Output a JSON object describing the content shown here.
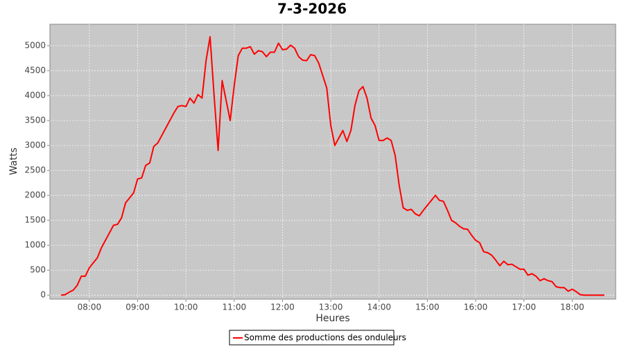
{
  "chart_data": {
    "type": "line",
    "title": "7-3-2026",
    "x_label": "Heures",
    "y_label": "Watts",
    "x": [
      "07:25",
      "07:30",
      "07:35",
      "07:40",
      "07:45",
      "07:50",
      "07:55",
      "08:00",
      "08:05",
      "08:10",
      "08:15",
      "08:20",
      "08:25",
      "08:30",
      "08:35",
      "08:40",
      "08:45",
      "08:50",
      "08:55",
      "09:00",
      "09:05",
      "09:10",
      "09:15",
      "09:20",
      "09:25",
      "09:30",
      "09:35",
      "09:40",
      "09:45",
      "09:50",
      "09:55",
      "10:00",
      "10:05",
      "10:10",
      "10:15",
      "10:20",
      "10:25",
      "10:30",
      "10:35",
      "10:40",
      "10:45",
      "10:50",
      "10:55",
      "11:00",
      "11:05",
      "11:10",
      "11:15",
      "11:20",
      "11:25",
      "11:30",
      "11:35",
      "11:40",
      "11:45",
      "11:50",
      "11:55",
      "12:00",
      "12:05",
      "12:10",
      "12:15",
      "12:20",
      "12:25",
      "12:30",
      "12:35",
      "12:40",
      "12:45",
      "12:50",
      "12:55",
      "13:00",
      "13:05",
      "13:10",
      "13:15",
      "13:20",
      "13:25",
      "13:30",
      "13:35",
      "13:40",
      "13:45",
      "13:50",
      "13:55",
      "14:00",
      "14:05",
      "14:10",
      "14:15",
      "14:20",
      "14:25",
      "14:30",
      "14:35",
      "14:40",
      "14:45",
      "14:50",
      "14:55",
      "15:00",
      "15:05",
      "15:10",
      "15:15",
      "15:20",
      "15:25",
      "15:30",
      "15:35",
      "15:40",
      "15:45",
      "15:50",
      "15:55",
      "16:00",
      "16:05",
      "16:10",
      "16:15",
      "16:20",
      "16:25",
      "16:30",
      "16:35",
      "16:40",
      "16:45",
      "16:50",
      "16:55",
      "17:00",
      "17:05",
      "17:10",
      "17:15",
      "17:20",
      "17:25",
      "17:30",
      "17:35",
      "17:40",
      "17:45",
      "17:50",
      "17:55",
      "18:00",
      "18:05",
      "18:10",
      "18:15",
      "18:20",
      "18:25",
      "18:30",
      "18:35",
      "18:40"
    ],
    "series": [
      {
        "name": "Somme des productions des onduleurs",
        "color": "#ff0000",
        "values": [
          0,
          10,
          60,
          100,
          200,
          380,
          380,
          550,
          650,
          750,
          950,
          1100,
          1250,
          1400,
          1420,
          1550,
          1850,
          1950,
          2050,
          2330,
          2350,
          2600,
          2650,
          2980,
          3050,
          3200,
          3350,
          3500,
          3650,
          3780,
          3800,
          3780,
          3950,
          3850,
          4020,
          3950,
          4700,
          5180,
          4000,
          2900,
          4300,
          3900,
          3500,
          4200,
          4800,
          4950,
          4950,
          4980,
          4830,
          4900,
          4880,
          4780,
          4870,
          4870,
          5050,
          4920,
          4930,
          5010,
          4950,
          4780,
          4710,
          4700,
          4820,
          4800,
          4650,
          4400,
          4150,
          3400,
          3000,
          3150,
          3300,
          3080,
          3300,
          3800,
          4100,
          4180,
          3950,
          3550,
          3400,
          3100,
          3100,
          3150,
          3100,
          2800,
          2200,
          1750,
          1700,
          1720,
          1630,
          1590,
          1700,
          1800,
          1900,
          2000,
          1900,
          1880,
          1700,
          1500,
          1450,
          1380,
          1330,
          1320,
          1200,
          1100,
          1050,
          870,
          850,
          800,
          700,
          590,
          680,
          610,
          620,
          570,
          520,
          520,
          400,
          430,
          380,
          290,
          330,
          290,
          270,
          170,
          150,
          150,
          80,
          120,
          70,
          10,
          0,
          0,
          0,
          0,
          0,
          0
        ]
      }
    ],
    "xlim": [
      "07:11",
      "18:54"
    ],
    "xticks": [
      "08:00",
      "09:00",
      "10:00",
      "11:00",
      "12:00",
      "13:00",
      "14:00",
      "15:00",
      "16:00",
      "17:00",
      "18:00"
    ],
    "ylim": [
      -80,
      5430
    ],
    "yticks": [
      0,
      500,
      1000,
      1500,
      2000,
      2500,
      3000,
      3500,
      4000,
      4500,
      5000
    ],
    "grid": true,
    "legend": "bottom"
  }
}
